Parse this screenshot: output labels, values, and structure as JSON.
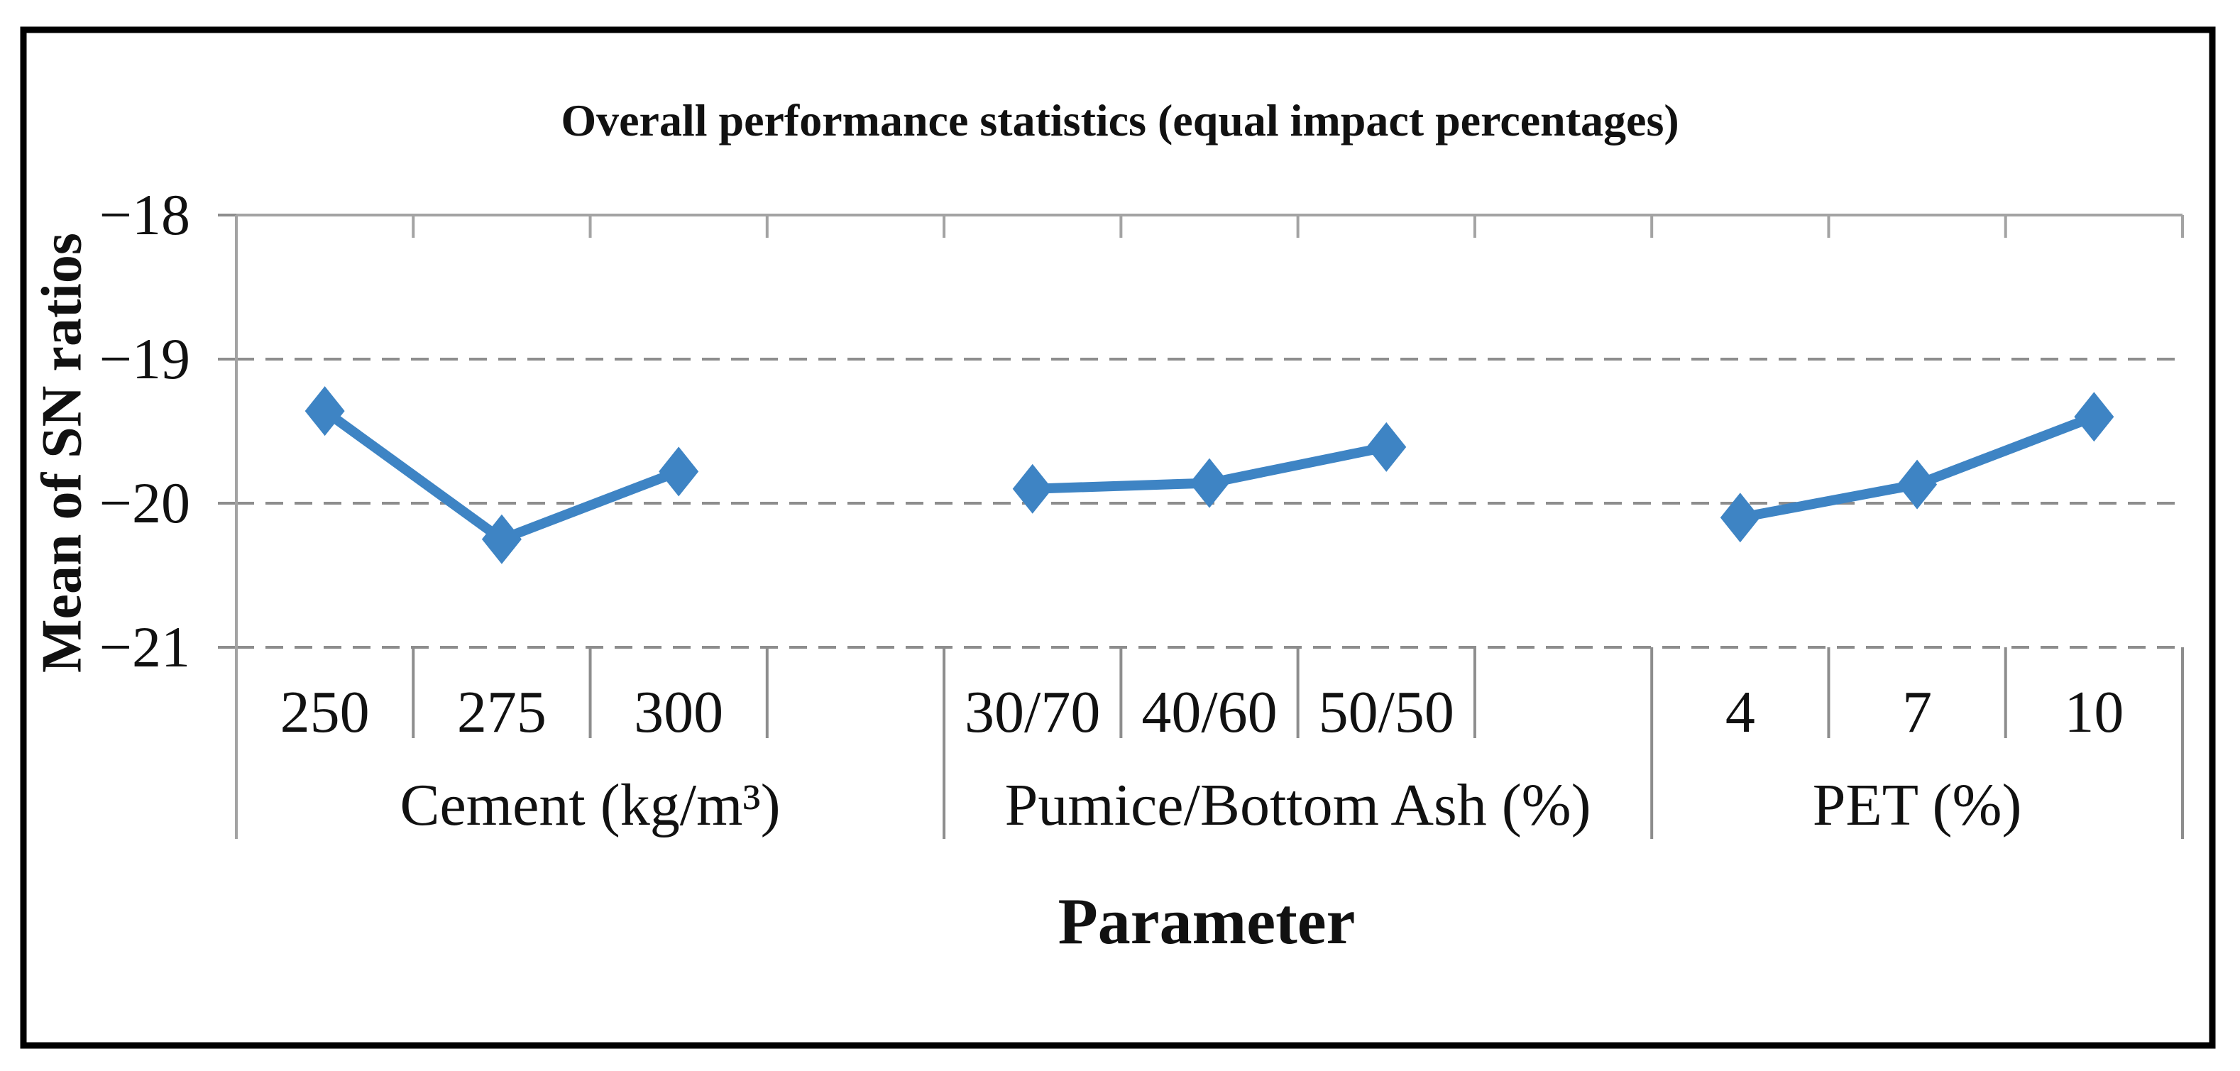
{
  "chart_data": {
    "type": "line",
    "title": "Overall performance statistics (equal impact percentages)",
    "ylabel": "Mean of SN ratios",
    "xlabel": "Parameter",
    "ylim": [
      -21,
      -18
    ],
    "y_tick_values": [
      -18,
      -19,
      -20,
      -21
    ],
    "y_tick_labels": [
      "−18",
      "−19",
      "−20",
      "−21"
    ],
    "grid": "horizontal-dashed",
    "legend": "none",
    "marker": "diamond",
    "panels": [
      {
        "label": "Cement (kg/m³)",
        "categories": [
          "250",
          "275",
          "300"
        ],
        "values": [
          -19.36,
          -20.25,
          -19.78
        ]
      },
      {
        "label": "Pumice/Bottom Ash (%)",
        "categories": [
          "30/70",
          "40/60",
          "50/50"
        ],
        "values": [
          -19.9,
          -19.86,
          -19.61
        ]
      },
      {
        "label": "PET (%)",
        "categories": [
          "4",
          "7",
          "10"
        ],
        "values": [
          -20.1,
          -19.87,
          -19.4
        ]
      }
    ],
    "colors": {
      "series": "#3E84C4",
      "grid": "#8d8d8d",
      "frame": "#a3a3a3",
      "border": "#000000",
      "text": "#111111"
    }
  }
}
